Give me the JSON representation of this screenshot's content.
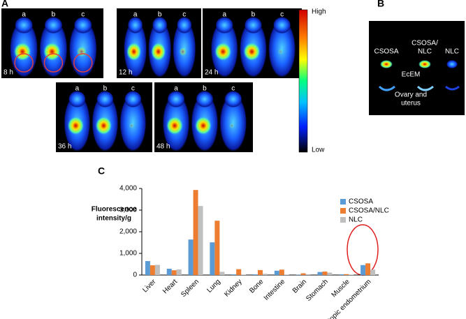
{
  "panel_labels": [
    "A",
    "B",
    "C"
  ],
  "panel_a": {
    "mouse_labels": [
      "a",
      "b",
      "c"
    ],
    "times": [
      "8 h",
      "12 h",
      "24 h",
      "36 h",
      "48 h"
    ],
    "scale_high": "High",
    "scale_low": "Low"
  },
  "panel_b": {
    "columns": [
      [
        "CSOSA"
      ],
      [
        "CSOSA/",
        "NLC"
      ],
      [
        "NLC"
      ]
    ],
    "rows": [
      [
        "EcEM"
      ],
      [
        "Ovary and",
        "uterus"
      ]
    ]
  },
  "chart_data": {
    "type": "bar",
    "ylabel": [
      "Fluorescence",
      "intensity/g"
    ],
    "categories": [
      "Liver",
      "Heart",
      "Spleen",
      "Lung",
      "Kidney",
      "Bone",
      "Intestine",
      "Brain",
      "Stomach",
      "Muscle",
      "Ectopic endometrium"
    ],
    "series": [
      {
        "name": "CSOSA",
        "color": "#5b9bd5",
        "values": [
          645,
          290,
          1640,
          1510,
          30,
          30,
          200,
          20,
          140,
          30,
          460
        ]
      },
      {
        "name": "CSOSA/NLC",
        "color": "#ed7d31",
        "values": [
          450,
          220,
          3930,
          2510,
          270,
          230,
          250,
          80,
          160,
          40,
          540
        ]
      },
      {
        "name": "NLC",
        "color": "#bfbfbf",
        "values": [
          470,
          260,
          3190,
          150,
          20,
          60,
          20,
          10,
          110,
          20,
          250
        ]
      }
    ],
    "ylim": [
      0,
      4000
    ],
    "yticks": [
      0,
      {
        "value": 1000,
        "label": "1,000"
      },
      {
        "value": 2000,
        "label": "2,000"
      },
      {
        "value": 3000,
        "label": "3,000"
      },
      {
        "value": 4000,
        "label": "4,000"
      }
    ],
    "legend": "top-right"
  }
}
